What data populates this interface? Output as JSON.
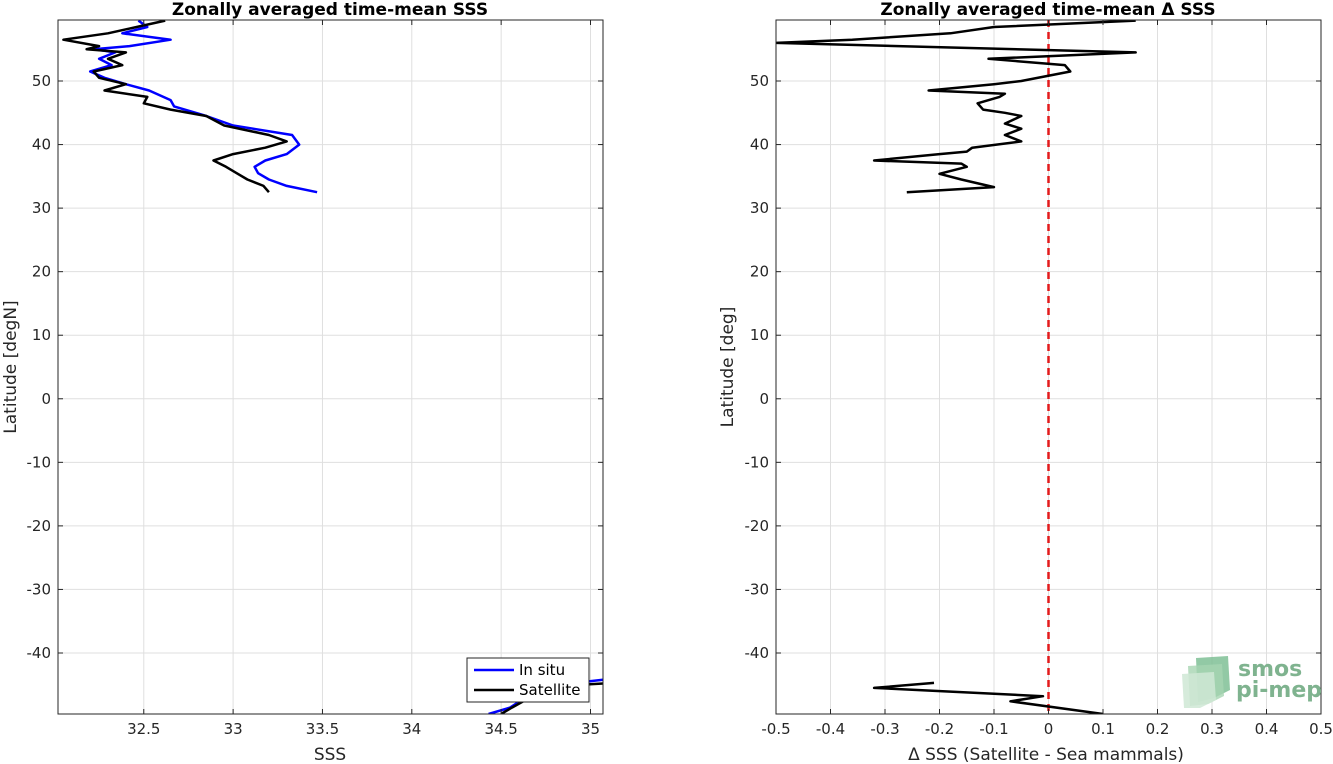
{
  "chart_data": [
    {
      "type": "line",
      "title": "Zonally averaged time-mean SSS",
      "xlabel": "SSS",
      "ylabel": "Latitude [degN]",
      "xlim": [
        32.02,
        35.07
      ],
      "ylim": [
        -49.6,
        59.6
      ],
      "xticks": [
        32.5,
        33,
        33.5,
        34,
        34.5,
        35
      ],
      "xtick_labels": [
        "32.5",
        "33",
        "33.5",
        "34",
        "34.5",
        "35"
      ],
      "yticks": [
        -40,
        -30,
        -20,
        -10,
        0,
        10,
        20,
        30,
        40,
        50
      ],
      "ytick_labels": [
        "-40",
        "-30",
        "-20",
        "-10",
        "0",
        "10",
        "20",
        "30",
        "40",
        "50"
      ],
      "grid": true,
      "legend": {
        "location": "bottom-right",
        "entries": [
          "In situ",
          "Satellite"
        ]
      },
      "series": [
        {
          "name": "In situ",
          "color": "#0000ff",
          "points": [
            [
              33.47,
              32.5
            ],
            [
              33.3,
              33.5
            ],
            [
              33.2,
              34.5
            ],
            [
              33.14,
              35.5
            ],
            [
              33.12,
              36.5
            ],
            [
              33.18,
              37.5
            ],
            [
              33.3,
              38.5
            ],
            [
              33.37,
              40.0
            ],
            [
              33.33,
              41.5
            ],
            [
              33.0,
              43.0
            ],
            [
              32.85,
              44.5
            ],
            [
              32.67,
              46.0
            ],
            [
              32.65,
              47.0
            ],
            [
              32.53,
              48.5
            ],
            [
              32.4,
              49.5
            ],
            [
              32.28,
              50.5
            ],
            [
              32.2,
              51.5
            ],
            [
              32.32,
              52.5
            ],
            [
              32.25,
              53.5
            ],
            [
              32.34,
              54.5
            ],
            [
              32.22,
              55.0
            ],
            [
              32.42,
              55.5
            ],
            [
              32.65,
              56.5
            ],
            [
              32.38,
              57.5
            ],
            [
              32.52,
              58.5
            ],
            [
              32.47,
              59.5
            ]
          ]
        },
        {
          "name": "Satellite",
          "color": "#000000",
          "points": [
            [
              33.2,
              32.5
            ],
            [
              33.17,
              33.5
            ],
            [
              33.08,
              34.5
            ],
            [
              33.02,
              35.5
            ],
            [
              32.96,
              36.5
            ],
            [
              32.89,
              37.5
            ],
            [
              33.0,
              38.5
            ],
            [
              33.18,
              39.5
            ],
            [
              33.3,
              40.5
            ],
            [
              33.2,
              41.5
            ],
            [
              32.95,
              43.0
            ],
            [
              32.85,
              44.5
            ],
            [
              32.65,
              45.5
            ],
            [
              32.5,
              46.5
            ],
            [
              32.52,
              47.5
            ],
            [
              32.28,
              48.5
            ],
            [
              32.4,
              49.5
            ],
            [
              32.25,
              50.5
            ],
            [
              32.22,
              51.5
            ],
            [
              32.38,
              52.5
            ],
            [
              32.3,
              53.5
            ],
            [
              32.4,
              54.5
            ],
            [
              32.18,
              55.0
            ],
            [
              32.25,
              55.5
            ],
            [
              32.05,
              56.5
            ],
            [
              32.3,
              57.5
            ],
            [
              32.46,
              58.5
            ],
            [
              32.62,
              59.5
            ]
          ]
        }
      ],
      "southern_segments": [
        {
          "name": "In situ",
          "points": [
            [
              34.43,
              -49.6
            ],
            [
              34.55,
              -48.6
            ],
            [
              34.62,
              -47.3
            ],
            [
              34.7,
              -45.4
            ],
            [
              35.07,
              -44.2
            ]
          ]
        },
        {
          "name": "Satellite",
          "points": [
            [
              34.5,
              -49.6
            ],
            [
              34.56,
              -48.6
            ],
            [
              34.65,
              -47.2
            ],
            [
              34.75,
              -45.3
            ],
            [
              35.07,
              -44.8
            ]
          ]
        }
      ]
    },
    {
      "type": "line",
      "title": "Zonally averaged time-mean Δ SSS",
      "xlabel": "Δ SSS (Satellite - Sea mammals)",
      "ylabel": "Latitude [deg]",
      "xlim": [
        -0.5,
        0.5
      ],
      "ylim": [
        -49.6,
        59.6
      ],
      "xticks": [
        -0.5,
        -0.4,
        -0.3,
        -0.2,
        -0.1,
        0,
        0.1,
        0.2,
        0.3,
        0.4,
        0.5
      ],
      "xtick_labels": [
        "-0.5",
        "-0.4",
        "-0.3",
        "-0.2",
        "-0.1",
        "0",
        "0.1",
        "0.2",
        "0.3",
        "0.4",
        "0.5"
      ],
      "yticks": [
        -40,
        -30,
        -20,
        -10,
        0,
        10,
        20,
        30,
        40,
        50
      ],
      "ytick_labels": [
        "-40",
        "-30",
        "-20",
        "-10",
        "0",
        "10",
        "20",
        "30",
        "40",
        "50"
      ],
      "grid": true,
      "reference_line": {
        "x": 0,
        "color": "#e31a1c",
        "style": "dashed"
      },
      "series": [
        {
          "name": "Delta SSS",
          "color": "#000000",
          "points": [
            [
              -0.26,
              32.5
            ],
            [
              -0.1,
              33.3
            ],
            [
              -0.16,
              34.5
            ],
            [
              -0.2,
              35.4
            ],
            [
              -0.15,
              36.5
            ],
            [
              -0.16,
              37.0
            ],
            [
              -0.32,
              37.5
            ],
            [
              -0.2,
              38.5
            ],
            [
              -0.15,
              38.9
            ],
            [
              -0.14,
              39.5
            ],
            [
              -0.05,
              40.5
            ],
            [
              -0.08,
              41.5
            ],
            [
              -0.05,
              42.5
            ],
            [
              -0.08,
              43.3
            ],
            [
              -0.05,
              44.5
            ],
            [
              -0.08,
              45.0
            ],
            [
              -0.12,
              45.5
            ],
            [
              -0.13,
              46.5
            ],
            [
              -0.09,
              47.5
            ],
            [
              -0.08,
              48.0
            ],
            [
              -0.22,
              48.5
            ],
            [
              -0.1,
              49.5
            ],
            [
              -0.05,
              50.0
            ],
            [
              0.04,
              51.5
            ],
            [
              0.03,
              52.5
            ],
            [
              -0.11,
              53.5
            ],
            [
              0.16,
              54.5
            ],
            [
              -0.5,
              56.0
            ],
            [
              -0.36,
              56.5
            ],
            [
              -0.18,
              57.5
            ],
            [
              -0.1,
              58.5
            ],
            [
              0.16,
              59.5
            ]
          ]
        }
      ],
      "southern_segments": [
        {
          "name": "Delta SSS",
          "points": [
            [
              0.1,
              -49.6
            ],
            [
              -0.07,
              -47.6
            ],
            [
              -0.01,
              -46.8
            ],
            [
              -0.32,
              -45.5
            ],
            [
              -0.21,
              -44.7
            ]
          ]
        }
      ],
      "logo": {
        "line1": "smos",
        "line2": "pi-mep"
      }
    }
  ]
}
